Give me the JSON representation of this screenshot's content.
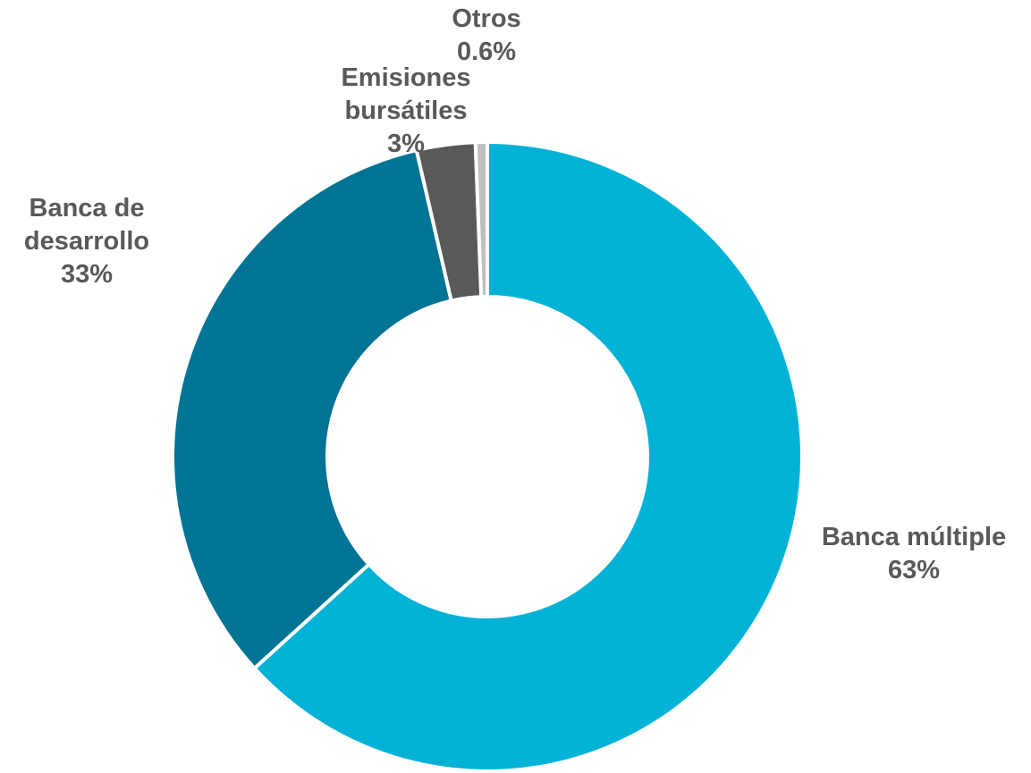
{
  "chart_data": {
    "type": "pie",
    "donut": true,
    "legend": "none",
    "title": "",
    "slices": [
      {
        "name": "Banca múltiple",
        "label_lines": [
          "Banca múltiple"
        ],
        "value": 63,
        "display": "63%",
        "color": "#00B3D6"
      },
      {
        "name": "Banca de desarrollo",
        "label_lines": [
          "Banca de",
          "desarrollo"
        ],
        "value": 33,
        "display": "33%",
        "color": "#007494"
      },
      {
        "name": "Emisiones bursátiles",
        "label_lines": [
          "Emisiones",
          "bursátiles"
        ],
        "value": 3,
        "display": "3%",
        "color": "#595959"
      },
      {
        "name": "Otros",
        "label_lines": [
          "Otros"
        ],
        "value": 0.6,
        "display": "0.6%",
        "color": "#BFBFBF"
      }
    ]
  }
}
